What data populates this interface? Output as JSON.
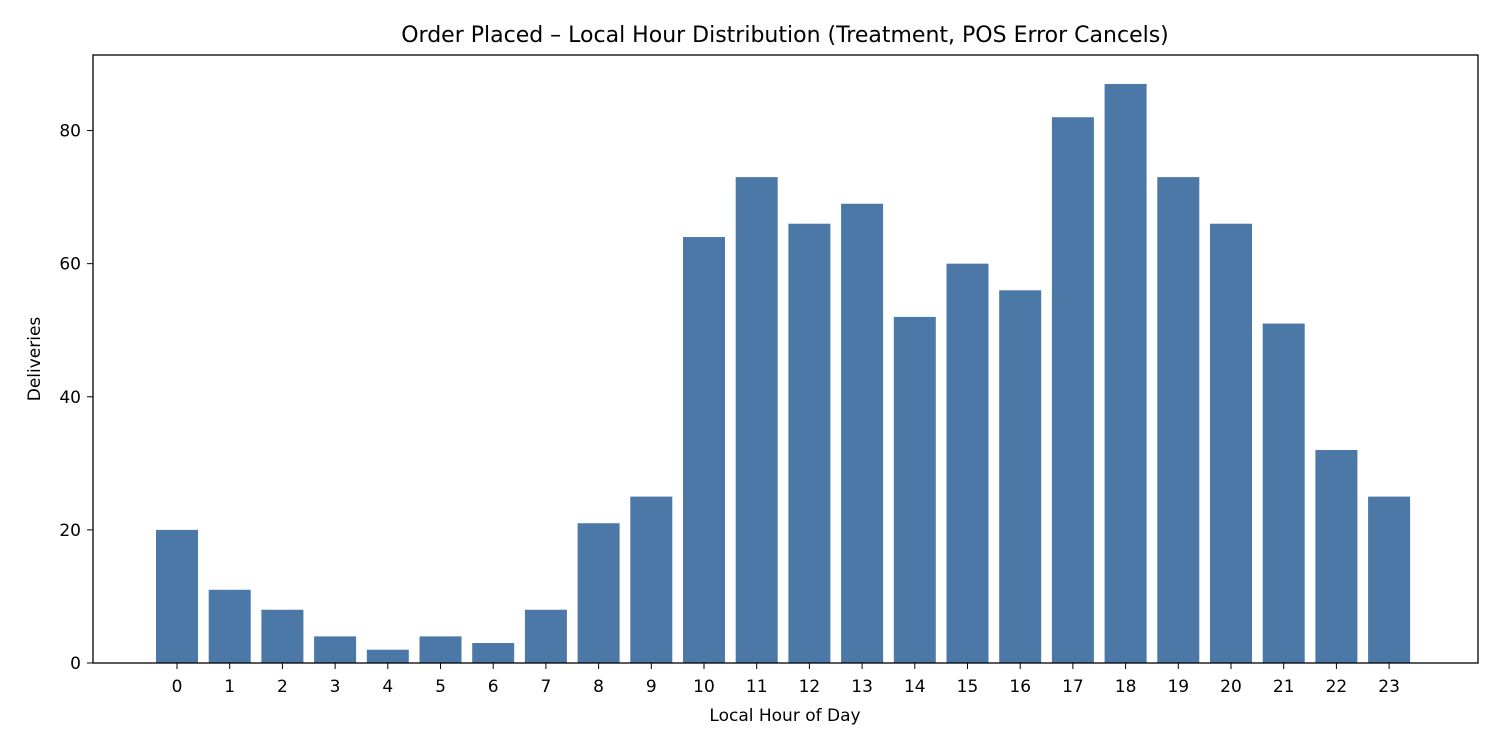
{
  "chart_data": {
    "type": "bar",
    "title": "Order Placed – Local Hour Distribution (Treatment, POS Error Cancels)",
    "xlabel": "Local Hour of Day",
    "ylabel": "Deliveries",
    "categories": [
      "0",
      "1",
      "2",
      "3",
      "4",
      "5",
      "6",
      "7",
      "8",
      "9",
      "10",
      "11",
      "12",
      "13",
      "14",
      "15",
      "16",
      "17",
      "18",
      "19",
      "20",
      "21",
      "22",
      "23"
    ],
    "values": [
      20,
      11,
      8,
      4,
      2,
      4,
      3,
      8,
      21,
      25,
      64,
      73,
      66,
      69,
      52,
      60,
      56,
      82,
      87,
      73,
      66,
      51,
      32,
      25
    ],
    "ylim": [
      0,
      91.35
    ],
    "yticks": [
      0,
      20,
      40,
      60,
      80
    ],
    "bar_color": "#4c78a8",
    "grid": false,
    "legend": "none"
  }
}
